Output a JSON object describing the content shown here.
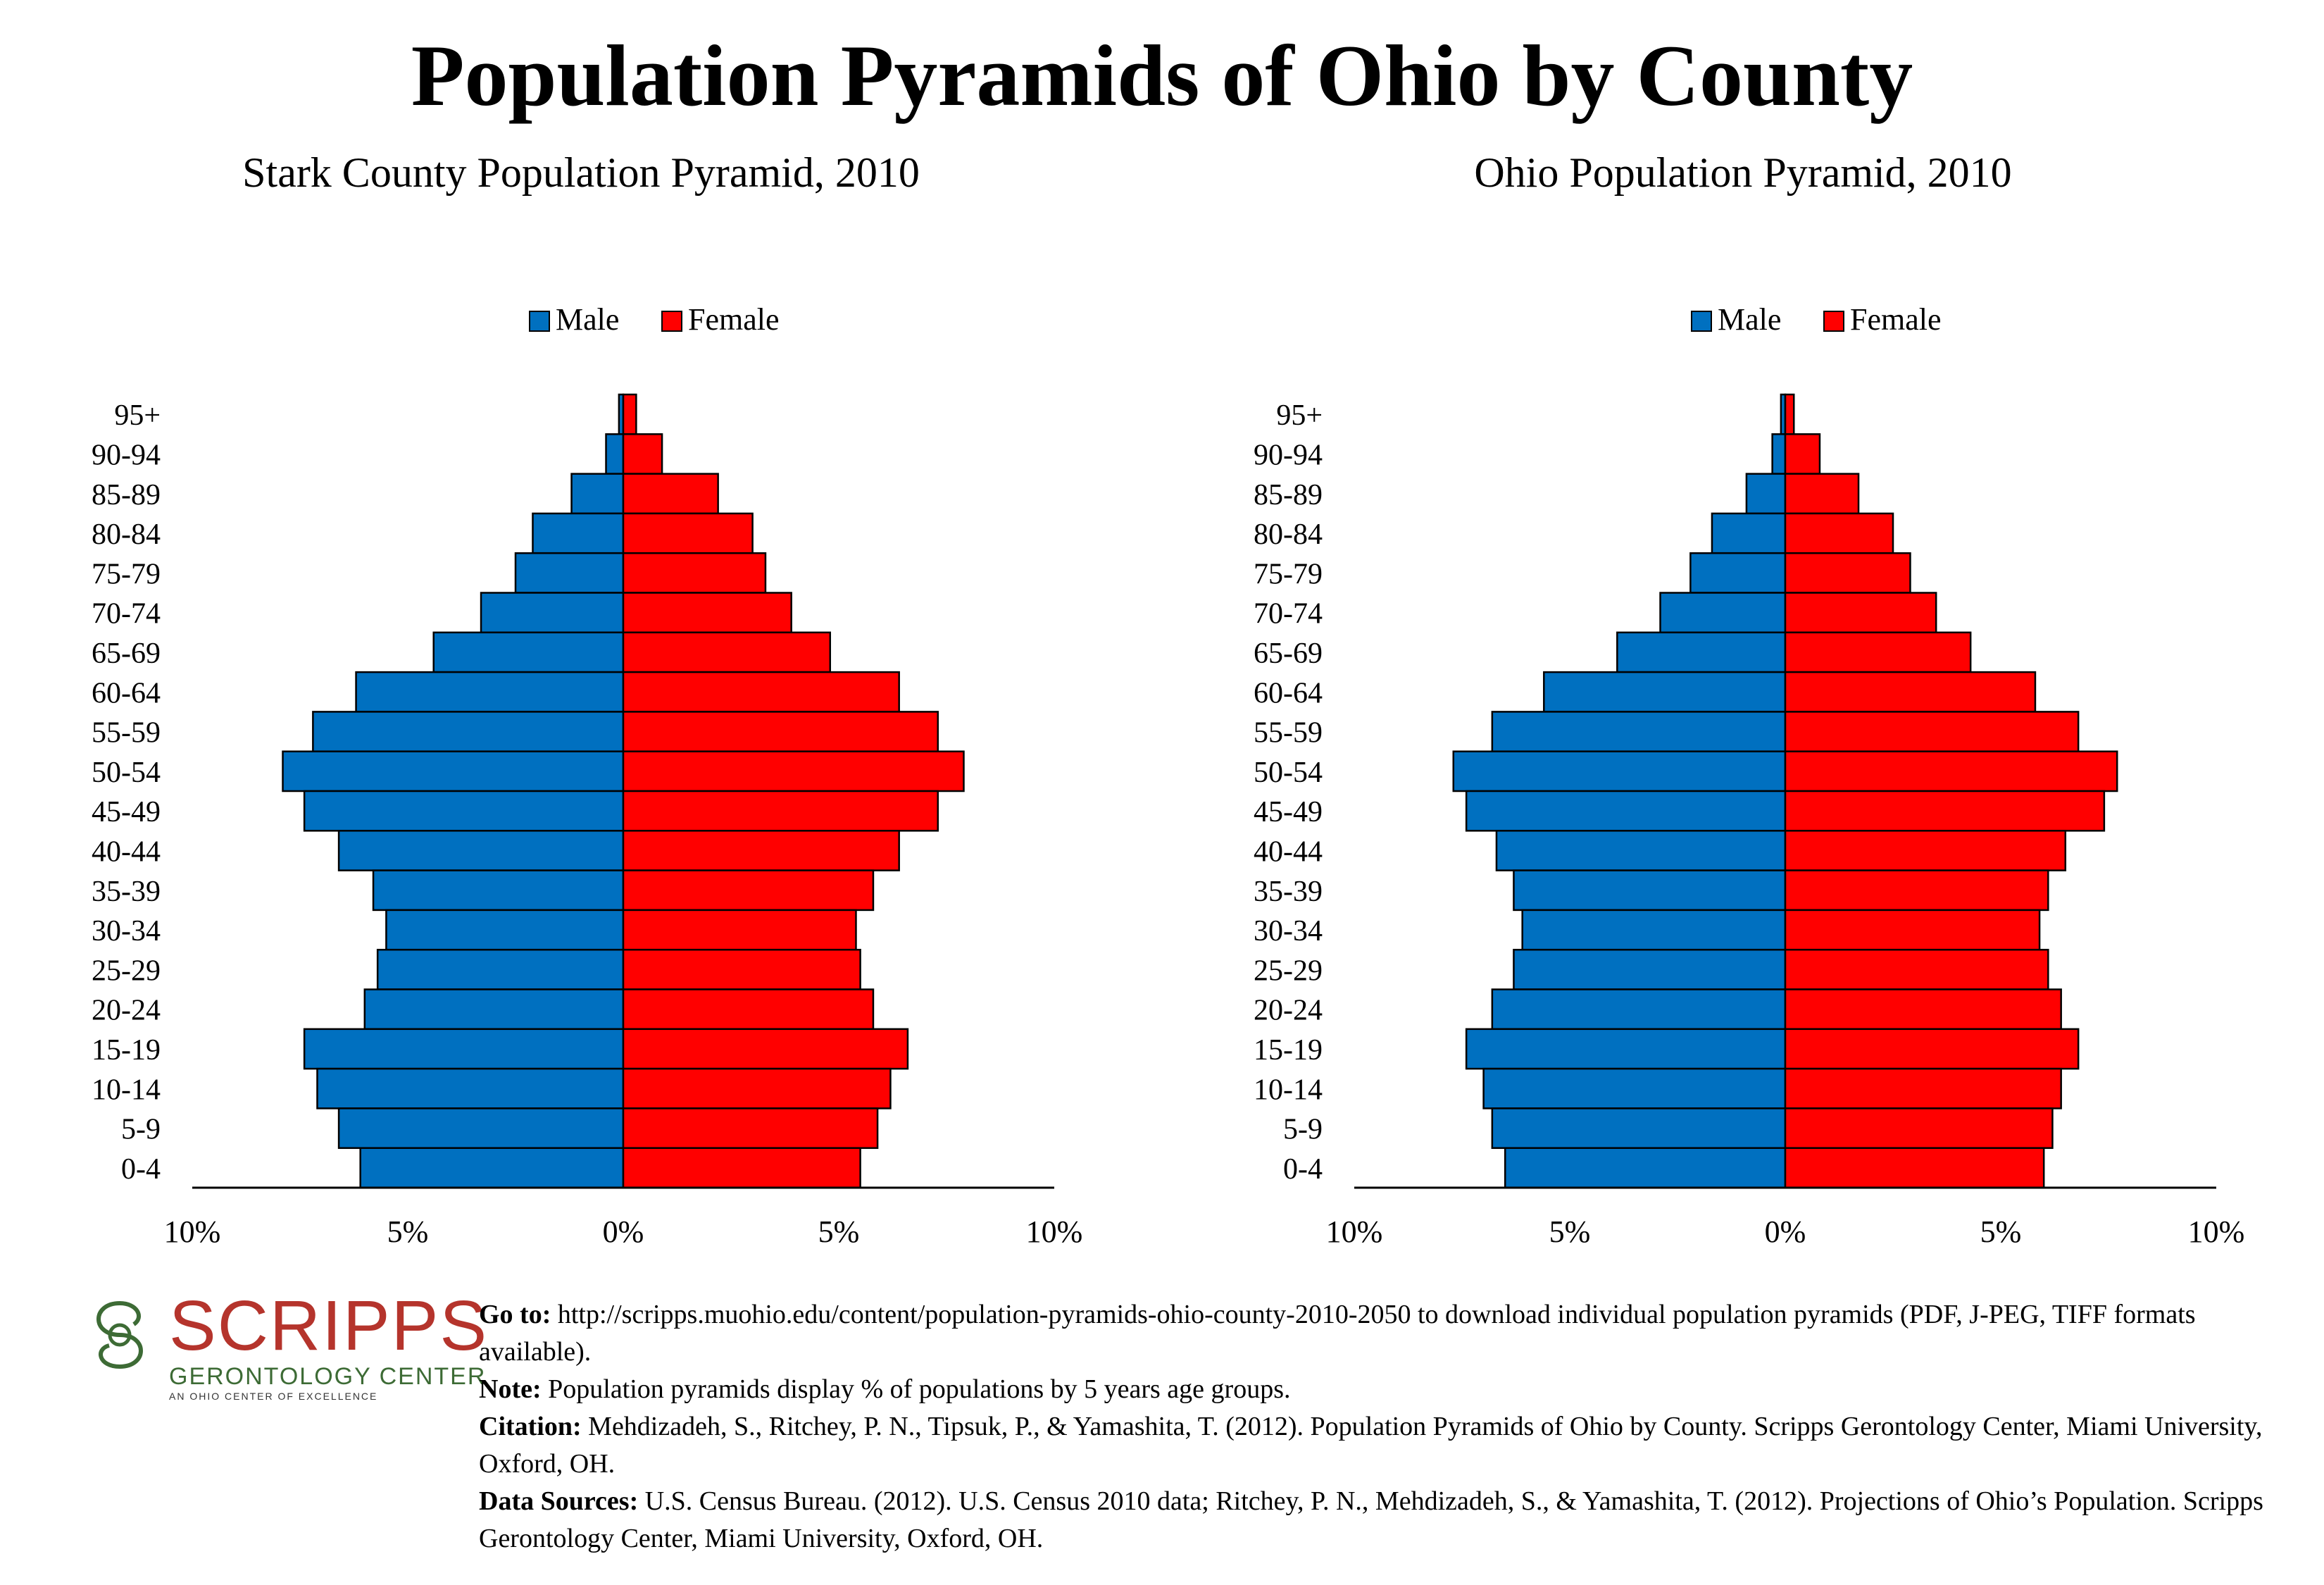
{
  "title": "Population Pyramids of Ohio by County",
  "legend": {
    "male": "Male",
    "female": "Female"
  },
  "colors": {
    "male": "#0070c0",
    "female": "#ff0000"
  },
  "chart_data": [
    {
      "type": "bar",
      "orientation": "horizontal-population-pyramid",
      "title": "Stark County Population Pyramid, 2010",
      "categories": [
        "95+",
        "90-94",
        "85-89",
        "80-84",
        "75-79",
        "70-74",
        "65-69",
        "60-64",
        "55-59",
        "50-54",
        "45-49",
        "40-44",
        "35-39",
        "30-34",
        "25-29",
        "20-24",
        "15-19",
        "10-14",
        "5-9",
        "0-4"
      ],
      "series": [
        {
          "name": "Male",
          "values": [
            0.1,
            0.4,
            1.2,
            2.1,
            2.5,
            3.3,
            4.4,
            6.2,
            7.2,
            7.9,
            7.4,
            6.6,
            5.8,
            5.5,
            5.7,
            6.0,
            7.4,
            7.1,
            6.6,
            6.1
          ]
        },
        {
          "name": "Female",
          "values": [
            0.3,
            0.9,
            2.2,
            3.0,
            3.3,
            3.9,
            4.8,
            6.4,
            7.3,
            7.9,
            7.3,
            6.4,
            5.8,
            5.4,
            5.5,
            5.8,
            6.6,
            6.2,
            5.9,
            5.5
          ]
        }
      ],
      "xlim": [
        -10,
        10
      ],
      "x_ticks": [
        "10%",
        "5%",
        "0%",
        "5%",
        "10%"
      ],
      "legend_position": "top"
    },
    {
      "type": "bar",
      "orientation": "horizontal-population-pyramid",
      "title": "Ohio Population Pyramid, 2010",
      "categories": [
        "95+",
        "90-94",
        "85-89",
        "80-84",
        "75-79",
        "70-74",
        "65-69",
        "60-64",
        "55-59",
        "50-54",
        "45-49",
        "40-44",
        "35-39",
        "30-34",
        "25-29",
        "20-24",
        "15-19",
        "10-14",
        "5-9",
        "0-4"
      ],
      "series": [
        {
          "name": "Male",
          "values": [
            0.1,
            0.3,
            0.9,
            1.7,
            2.2,
            2.9,
            3.9,
            5.6,
            6.8,
            7.7,
            7.4,
            6.7,
            6.3,
            6.1,
            6.3,
            6.8,
            7.4,
            7.0,
            6.8,
            6.5
          ]
        },
        {
          "name": "Female",
          "values": [
            0.2,
            0.8,
            1.7,
            2.5,
            2.9,
            3.5,
            4.3,
            5.8,
            6.8,
            7.7,
            7.4,
            6.5,
            6.1,
            5.9,
            6.1,
            6.4,
            6.8,
            6.4,
            6.2,
            6.0
          ]
        }
      ],
      "xlim": [
        -10,
        10
      ],
      "x_ticks": [
        "10%",
        "5%",
        "0%",
        "5%",
        "10%"
      ],
      "legend_position": "top"
    }
  ],
  "logo": {
    "name": "SCRIPPS",
    "subtitle": "GERONTOLOGY CENTER",
    "tagline": "AN OHIO CENTER OF EXCELLENCE"
  },
  "notes": {
    "goto_label": "Go to:",
    "goto_text": "http://scripps.muohio.edu/content/population-pyramids-ohio-county-2010-2050 to download individual population pyramids (PDF, J-PEG, TIFF formats available).",
    "note_label": "Note:",
    "note_text": "Population pyramids display % of populations by 5 years age groups.",
    "citation_label": "Citation:",
    "citation_text": "Mehdizadeh, S., Ritchey, P. N., Tipsuk, P., & Yamashita, T. (2012). Population Pyramids of Ohio by County. Scripps Gerontology Center, Miami University, Oxford, OH.",
    "sources_label": "Data Sources:",
    "sources_text": "U.S. Census Bureau. (2012). U.S. Census 2010 data; Ritchey, P. N., Mehdizadeh, S., & Yamashita, T. (2012). Projections of Ohio’s Population. Scripps Gerontology Center, Miami University, Oxford, OH."
  }
}
